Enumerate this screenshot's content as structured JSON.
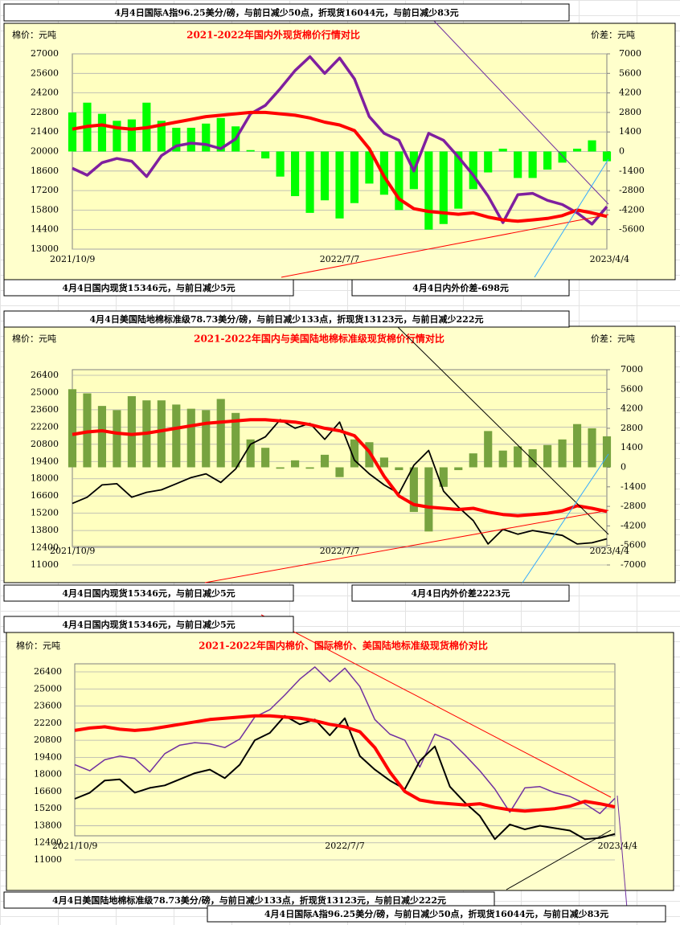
{
  "captions": [
    "4月4日国际A指96.25美分/磅，与前日减少50点，折现货16044元，与前日减少83元",
    "4月4日国内现货15346元，与前日减少5元",
    "4月4日内外价差-698元",
    "4月4日美国陆地棉标准级78.73美分/磅，与前日减少133点，折现货13123元，与前日减少222元",
    "4月4日国内现货15346元，与前日减少5元",
    "4月4日内外价差2223元",
    "4月4日国内现货15346元，与前日减少5元",
    "4月4日美国陆地棉标准级78.73美分/磅，与前日减少133点，折现货13123元，与前日减少222元",
    "4月4日国际A指96.25美分/磅，与前日减少50点，折现货16044元，与前日减少83元"
  ],
  "chart_data": [
    {
      "type": "combo",
      "title": "2021-2022年国内外现货棉价行情对比",
      "y_label": "棉价：元吨",
      "y2_label": "价差：元吨",
      "categories": [
        "2021/10/9",
        null,
        null,
        null,
        null,
        null,
        null,
        null,
        null,
        null,
        null,
        null,
        null,
        null,
        null,
        null,
        null,
        null,
        "2022/7/7",
        null,
        null,
        null,
        null,
        null,
        null,
        null,
        null,
        null,
        null,
        null,
        null,
        null,
        null,
        null,
        null,
        null,
        "2023/4/4"
      ],
      "ylim": [
        13000,
        27000
      ],
      "yticks": [
        13000,
        14400,
        15800,
        17200,
        18600,
        20000,
        21400,
        22800,
        24200,
        25600,
        27000
      ],
      "y2lim": [
        -7000,
        7000
      ],
      "y2ticks": [
        -5600,
        -4200,
        -2800,
        -1400,
        0,
        1400,
        2800,
        4200,
        5600,
        7000
      ],
      "grid": true,
      "series": [
        {
          "type": "bar",
          "axis": "y2",
          "color": "#00ff00",
          "values": [
            2800,
            3500,
            2700,
            2200,
            2300,
            3500,
            2200,
            1700,
            1700,
            2000,
            2400,
            1800,
            100,
            -500,
            -1800,
            -3200,
            -4400,
            -3500,
            -4800,
            -3700,
            -2300,
            -3100,
            -4200,
            -2700,
            -5600,
            -5200,
            -4100,
            -2700,
            -1500,
            200,
            -1900,
            -1900,
            -1300,
            -800,
            200,
            800,
            -698
          ]
        },
        {
          "type": "line",
          "color": "#7f1f9f",
          "values": [
            18800,
            18300,
            19200,
            19500,
            19300,
            18200,
            19700,
            20400,
            20600,
            20500,
            20200,
            20900,
            22700,
            23300,
            24500,
            25800,
            26800,
            25600,
            26700,
            25200,
            22500,
            21300,
            20800,
            18600,
            21300,
            20800,
            19600,
            18300,
            16800,
            14900,
            16900,
            17000,
            16500,
            16200,
            15600,
            14800,
            16044
          ]
        },
        {
          "type": "line",
          "color": "#ff0000",
          "values": [
            21600,
            21800,
            21900,
            21700,
            21600,
            21700,
            21900,
            22100,
            22300,
            22500,
            22600,
            22700,
            22800,
            22800,
            22700,
            22600,
            22400,
            22100,
            21900,
            21500,
            20200,
            18200,
            16600,
            15900,
            15700,
            15600,
            15500,
            15600,
            15300,
            15100,
            15000,
            15100,
            15200,
            15400,
            15800,
            15600,
            15346
          ]
        }
      ]
    },
    {
      "type": "combo",
      "title": "2021-2022年国内与美国陆地棉标准级现货棉价行情对比",
      "y_label": "棉价：元吨",
      "y2_label": "价差：元吨",
      "categories": [
        "2021/10/9",
        null,
        null,
        null,
        null,
        null,
        null,
        null,
        null,
        null,
        null,
        null,
        null,
        null,
        null,
        null,
        null,
        null,
        "2022/7/7",
        null,
        null,
        null,
        null,
        null,
        null,
        null,
        null,
        null,
        null,
        null,
        null,
        null,
        null,
        null,
        null,
        null,
        "2023/4/4"
      ],
      "ylim": [
        11000,
        26400
      ],
      "yticks": [
        11000,
        12400,
        13800,
        15200,
        16600,
        18000,
        19400,
        20800,
        22200,
        23600,
        25000,
        26400
      ],
      "y2lim": [
        -7000,
        7000
      ],
      "y2ticks": [
        -7000,
        -5600,
        -4200,
        -2800,
        -1400,
        0,
        1400,
        2800,
        4200,
        5600,
        7000
      ],
      "grid": true,
      "series": [
        {
          "type": "bar",
          "axis": "y2",
          "color": "#77a33f",
          "values": [
            5600,
            5300,
            4400,
            4100,
            5100,
            4800,
            4800,
            4500,
            4200,
            4100,
            4900,
            3900,
            2000,
            1400,
            -100,
            500,
            -100,
            900,
            -700,
            2000,
            1800,
            700,
            -200,
            -3200,
            -4600,
            -1400,
            -200,
            1000,
            2600,
            1200,
            1500,
            1300,
            1600,
            2000,
            3100,
            2800,
            2223
          ]
        },
        {
          "type": "line",
          "color": "#000000",
          "values": [
            16000,
            16500,
            17500,
            17600,
            16500,
            16900,
            17100,
            17600,
            18100,
            18400,
            17700,
            18800,
            20800,
            21400,
            22800,
            22100,
            22500,
            21200,
            22600,
            19500,
            18400,
            17500,
            16800,
            19100,
            20300,
            17000,
            15700,
            14600,
            12700,
            13900,
            13500,
            13800,
            13600,
            13400,
            12700,
            12800,
            13123
          ]
        },
        {
          "type": "line",
          "color": "#ff0000",
          "values": [
            21600,
            21800,
            21900,
            21700,
            21600,
            21700,
            21900,
            22100,
            22300,
            22500,
            22600,
            22700,
            22800,
            22800,
            22700,
            22600,
            22400,
            22100,
            21900,
            21500,
            20200,
            18200,
            16600,
            15900,
            15700,
            15600,
            15500,
            15600,
            15300,
            15100,
            15000,
            15100,
            15200,
            15400,
            15800,
            15600,
            15346
          ]
        }
      ]
    },
    {
      "type": "line",
      "title": "2021-2022年国内棉价、国际棉价、美国陆地标准级现货棉价对比",
      "y_label": "棉价：元吨",
      "categories": [
        "2021/10/9",
        null,
        null,
        null,
        null,
        null,
        null,
        null,
        null,
        null,
        null,
        null,
        null,
        null,
        null,
        null,
        null,
        null,
        "2022/7/7",
        null,
        null,
        null,
        null,
        null,
        null,
        null,
        null,
        null,
        null,
        null,
        null,
        null,
        null,
        null,
        null,
        null,
        "2023/4/4"
      ],
      "ylim": [
        11000,
        26400
      ],
      "yticks": [
        11000,
        12400,
        13800,
        15200,
        16600,
        18000,
        19400,
        20800,
        22200,
        23600,
        25000,
        26400
      ],
      "grid": true,
      "series": [
        {
          "type": "line",
          "color": "#7030a0",
          "values": [
            18800,
            18300,
            19200,
            19500,
            19300,
            18200,
            19700,
            20400,
            20600,
            20500,
            20200,
            20900,
            22700,
            23300,
            24500,
            25800,
            26800,
            25600,
            26700,
            25200,
            22500,
            21300,
            20800,
            18600,
            21300,
            20800,
            19600,
            18300,
            16800,
            14900,
            16900,
            17000,
            16500,
            16200,
            15600,
            14800,
            16044
          ]
        },
        {
          "type": "line",
          "color": "#000000",
          "values": [
            16000,
            16500,
            17500,
            17600,
            16500,
            16900,
            17100,
            17600,
            18100,
            18400,
            17700,
            18800,
            20800,
            21400,
            22800,
            22100,
            22500,
            21200,
            22600,
            19500,
            18400,
            17500,
            16800,
            19100,
            20300,
            17000,
            15700,
            14600,
            12700,
            13900,
            13500,
            13800,
            13600,
            13400,
            12700,
            12800,
            13123
          ]
        },
        {
          "type": "line",
          "color": "#ff0000",
          "values": [
            21600,
            21800,
            21900,
            21700,
            21600,
            21700,
            21900,
            22100,
            22300,
            22500,
            22600,
            22700,
            22800,
            22800,
            22700,
            22600,
            22400,
            22100,
            21900,
            21500,
            20200,
            18200,
            16600,
            15900,
            15700,
            15600,
            15500,
            15600,
            15300,
            15100,
            15000,
            15100,
            15200,
            15400,
            15800,
            15600,
            15346
          ]
        }
      ]
    }
  ]
}
